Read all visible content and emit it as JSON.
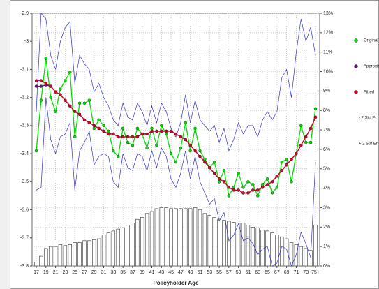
{
  "chart_data": {
    "type": "line",
    "x_label": "Policyholder Age",
    "categories": [
      "17",
      null,
      "19",
      null,
      "21",
      null,
      "23",
      null,
      "25",
      null,
      "27",
      null,
      "29",
      null,
      "31",
      null,
      "33",
      null,
      "35",
      null,
      "37",
      null,
      "39",
      null,
      "41",
      null,
      "43",
      null,
      "45",
      null,
      "47",
      null,
      "49",
      null,
      "51",
      null,
      "53",
      null,
      "55",
      null,
      "57",
      null,
      "59",
      null,
      "61",
      null,
      "63",
      null,
      "65",
      null,
      "67",
      null,
      "69",
      null,
      "71",
      null,
      "73",
      null,
      "75+"
    ],
    "ylim": [
      -3.8,
      -2.9
    ],
    "yticks": [
      -2.9,
      -3.0,
      -3.1,
      -3.2,
      -3.3,
      -3.4,
      -3.5,
      -3.6,
      -3.7,
      -3.8
    ],
    "y2lim": [
      0,
      13
    ],
    "y2ticks": [
      {
        "value": 0,
        "label": "0%"
      },
      {
        "value": 1,
        "label": "1%"
      },
      {
        "value": 2,
        "label": "2%"
      },
      {
        "value": 3,
        "label": "3%"
      },
      {
        "value": 4,
        "label": "4%"
      },
      {
        "value": 5,
        "label": "5%"
      },
      {
        "value": 6,
        "label": "6%"
      },
      {
        "value": 7,
        "label": "7%"
      },
      {
        "value": 8,
        "label": "8%"
      },
      {
        "value": 9,
        "label": "9%"
      },
      {
        "value": 10,
        "label": "10%"
      },
      {
        "value": 11,
        "label": "11%"
      },
      {
        "value": 12,
        "label": "12%"
      },
      {
        "value": 13,
        "label": "13%"
      }
    ],
    "grid": true,
    "exposure": {
      "axis": "y2",
      "color": "#ffffff",
      "values": [
        0.2,
        0.5,
        0.9,
        1.0,
        1.0,
        1.1,
        1.05,
        1.1,
        1.2,
        1.2,
        1.3,
        1.3,
        1.35,
        1.4,
        1.6,
        1.7,
        1.8,
        1.9,
        1.95,
        2.1,
        2.2,
        2.4,
        2.5,
        2.7,
        2.8,
        2.95,
        3.0,
        3.0,
        2.95,
        2.95,
        2.95,
        2.95,
        2.95,
        3.0,
        2.9,
        2.7,
        2.6,
        2.5,
        2.4,
        2.35,
        2.3,
        2.25,
        2.2,
        2.2,
        2.1,
        2.0,
        1.95,
        1.85,
        1.8,
        1.7,
        1.6,
        1.5,
        1.4,
        1.2,
        1.1,
        1.0,
        0.9,
        0.8,
        2.1
      ]
    },
    "series": [
      {
        "name": "Original",
        "color": "#00dd00",
        "marker": true,
        "values": [
          -3.39,
          -3.21,
          -3.06,
          -3.2,
          -3.25,
          -3.17,
          -3.14,
          -3.11,
          -3.34,
          -3.22,
          -3.22,
          -3.21,
          -3.31,
          -3.28,
          -3.3,
          -3.32,
          -3.39,
          -3.41,
          -3.31,
          -3.36,
          -3.37,
          -3.31,
          -3.33,
          -3.38,
          -3.31,
          -3.37,
          -3.3,
          -3.33,
          -3.4,
          -3.43,
          -3.38,
          -3.29,
          -3.39,
          -3.31,
          -3.39,
          -3.42,
          -3.45,
          -3.43,
          -3.5,
          -3.46,
          -3.55,
          -3.52,
          -3.47,
          -3.52,
          -3.5,
          -3.51,
          -3.55,
          -3.51,
          -3.49,
          -3.54,
          -3.52,
          -3.43,
          -3.42,
          -3.5,
          -3.4,
          -3.3,
          -3.36,
          -3.36,
          -3.24
        ]
      },
      {
        "name": "Approxim",
        "color": "#5a1a7a",
        "marker": true,
        "values": [
          -3.16,
          -3.16,
          -3.155,
          -3.16,
          -3.18,
          -3.19,
          -3.21,
          -3.23,
          -3.25,
          -3.26,
          -3.28,
          -3.29,
          -3.3,
          -3.31,
          -3.32,
          -3.33,
          -3.33,
          -3.34,
          -3.34,
          -3.34,
          -3.34,
          -3.34,
          -3.33,
          -3.33,
          -3.32,
          -3.32,
          -3.32,
          -3.32,
          -3.32,
          -3.33,
          -3.34,
          -3.35,
          -3.37,
          -3.39,
          -3.41,
          -3.43,
          -3.45,
          -3.47,
          -3.49,
          -3.5,
          -3.52,
          -3.53,
          -3.53,
          -3.54,
          -3.54,
          -3.53,
          -3.53,
          -3.52,
          -3.51,
          -3.5,
          -3.48,
          -3.46,
          -3.44,
          -3.42,
          -3.4,
          -3.37,
          -3.34,
          -3.31,
          -3.27
        ]
      },
      {
        "name": "Fitted",
        "color": "#dd0022",
        "marker": true,
        "values": [
          -3.14,
          -3.14,
          -3.15,
          -3.16,
          -3.18,
          -3.19,
          -3.21,
          -3.23,
          -3.25,
          -3.26,
          -3.28,
          -3.29,
          -3.3,
          -3.31,
          -3.32,
          -3.33,
          -3.33,
          -3.34,
          -3.34,
          -3.34,
          -3.34,
          -3.34,
          -3.33,
          -3.33,
          -3.32,
          -3.32,
          -3.32,
          -3.32,
          -3.32,
          -3.33,
          -3.34,
          -3.35,
          -3.37,
          -3.39,
          -3.41,
          -3.43,
          -3.45,
          -3.47,
          -3.49,
          -3.5,
          -3.52,
          -3.53,
          -3.53,
          -3.54,
          -3.54,
          -3.53,
          -3.53,
          -3.52,
          -3.51,
          -3.5,
          -3.48,
          -3.46,
          -3.44,
          -3.42,
          -3.4,
          -3.37,
          -3.34,
          -3.31,
          -3.27
        ]
      },
      {
        "name": "- 2 Std Er",
        "color": "#3333cc",
        "marker": false,
        "values": [
          -3.53,
          -3.52,
          -3.2,
          -3.35,
          -3.4,
          -3.34,
          -3.33,
          -3.29,
          -3.53,
          -3.39,
          -3.36,
          -3.32,
          -3.44,
          -3.41,
          -3.4,
          -3.41,
          -3.5,
          -3.52,
          -3.4,
          -3.45,
          -3.46,
          -3.4,
          -3.41,
          -3.46,
          -3.39,
          -3.45,
          -3.38,
          -3.41,
          -3.49,
          -3.52,
          -3.47,
          -3.39,
          -3.49,
          -3.41,
          -3.5,
          -3.54,
          -3.58,
          -3.56,
          -3.64,
          -3.61,
          -3.71,
          -3.69,
          -3.65,
          -3.71,
          -3.7,
          -3.72,
          -3.76,
          -3.74,
          -3.73,
          -3.8,
          -3.79,
          -3.73,
          -3.74,
          -3.8,
          -3.76,
          -3.68,
          -3.72,
          -3.77,
          -3.43
        ]
      },
      {
        "name": "+ 2 Std Er",
        "color": "#3333cc",
        "marker": false,
        "values": [
          -3.25,
          -2.9,
          -2.92,
          -3.05,
          -3.1,
          -3.0,
          -2.95,
          -2.93,
          -3.15,
          -3.05,
          -3.08,
          -3.1,
          -3.18,
          -3.15,
          -3.2,
          -3.23,
          -3.28,
          -3.3,
          -3.22,
          -3.27,
          -3.28,
          -3.22,
          -3.25,
          -3.3,
          -3.23,
          -3.29,
          -3.22,
          -3.25,
          -3.31,
          -3.34,
          -3.29,
          -3.19,
          -3.29,
          -3.21,
          -3.28,
          -3.3,
          -3.32,
          -3.3,
          -3.36,
          -3.31,
          -3.39,
          -3.35,
          -3.29,
          -3.33,
          -3.3,
          -3.3,
          -3.34,
          -3.28,
          -3.25,
          -3.28,
          -3.25,
          -3.13,
          -3.1,
          -3.2,
          -3.04,
          -2.92,
          -3.0,
          -2.95,
          -3.05
        ]
      }
    ]
  }
}
